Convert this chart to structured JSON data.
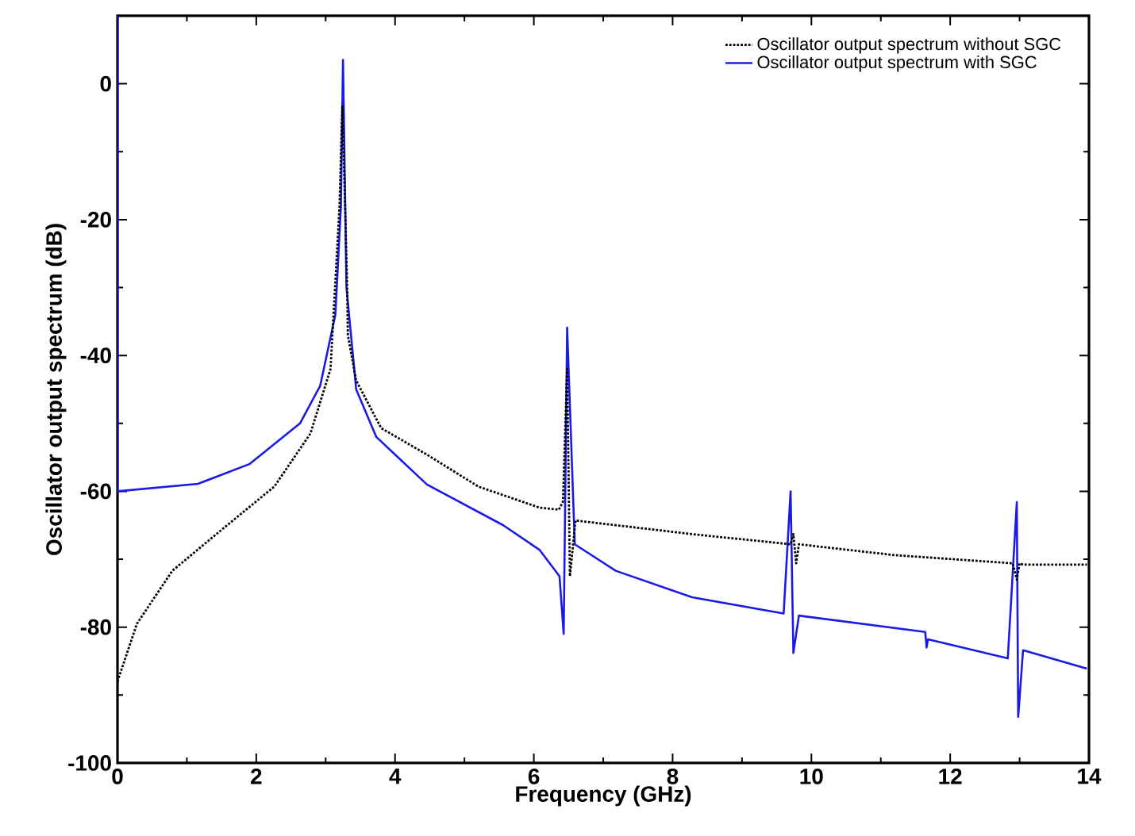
{
  "chart_data": {
    "type": "line",
    "xlabel": "Frequency (GHz)",
    "ylabel": "Oscillator output spectrum (dB)",
    "xlim": [
      0,
      14
    ],
    "ylim": [
      -100,
      10
    ],
    "xticks": [
      0,
      2,
      4,
      6,
      8,
      10,
      12,
      14
    ],
    "yticks": [
      -100,
      -80,
      -60,
      -40,
      -20,
      0
    ],
    "legend": "top right",
    "grid": false,
    "series": [
      {
        "name": "Oscillator output spectrum without SGC",
        "color": "#000000",
        "line_style": "dotted",
        "x": [
          0,
          0.28,
          0.79,
          1.52,
          2.26,
          2.78,
          3.07,
          3.2,
          3.24,
          3.28,
          3.31,
          3.32,
          3.44,
          3.8,
          4.46,
          5.2,
          6.08,
          6.36,
          6.42,
          6.48,
          6.52,
          6.6,
          8.28,
          9.7,
          9.74,
          9.78,
          9.82,
          11.2,
          12.9,
          12.96,
          13.0,
          13.05,
          13.97
        ],
        "values": [
          -88,
          -79.5,
          -71.7,
          -65.5,
          -59.3,
          -51.5,
          -42,
          -18,
          -3.2,
          -18,
          -30,
          -37,
          -43.7,
          -50.7,
          -54.6,
          -59.3,
          -62.4,
          -62.7,
          -61.5,
          -42,
          -72.5,
          -64.3,
          -66.3,
          -67.8,
          -66.3,
          -70.6,
          -67.8,
          -69.4,
          -70.6,
          -73,
          -70.6,
          -70.8,
          -70.8
        ]
      },
      {
        "name": "Oscillator output spectrum with SGC",
        "color": "#1a1ae6",
        "line_style": "solid",
        "x": [
          0,
          0,
          1.16,
          1.9,
          2.63,
          2.92,
          3.14,
          3.22,
          3.25,
          3.3,
          3.44,
          3.73,
          4.46,
          5.56,
          6.08,
          6.37,
          6.43,
          6.48,
          6.59,
          7.18,
          8.28,
          9.6,
          9.7,
          9.74,
          9.82,
          11.64,
          11.66,
          11.68,
          12.83,
          12.96,
          12.98,
          13.05,
          13.97
        ],
        "values": [
          10,
          -60,
          -58.9,
          -56,
          -50,
          -44.5,
          -34,
          -18,
          3.5,
          -30,
          -45,
          -52,
          -59,
          -65,
          -68.6,
          -72.5,
          -81,
          -35.9,
          -67.8,
          -71.7,
          -75.6,
          -78,
          -60,
          -83.8,
          -78.3,
          -80.7,
          -83,
          -81.8,
          -84.6,
          -61.6,
          -93.2,
          -83.4,
          -86.1
        ]
      }
    ]
  }
}
